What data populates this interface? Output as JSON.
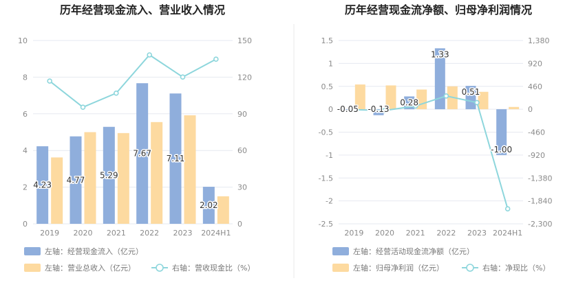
{
  "colors": {
    "bar_a": "#8FAEDC",
    "bar_b": "#FDDAA0",
    "line": "#8DD6DC",
    "grid": "#E6E9F0",
    "axis_text": "#8A8A8A",
    "title": "#222222",
    "label_text": "#333333",
    "legend_text": "#777777",
    "divider": "#EAEAEA"
  },
  "chart_data": [
    {
      "type": "bar",
      "title": "历年经营现金流入、营业收入情况",
      "categories": [
        "2019",
        "2020",
        "2021",
        "2022",
        "2023",
        "2024H1"
      ],
      "left_axis": {
        "ylim": [
          0,
          10
        ],
        "ticks": [
          "0",
          "2",
          "4",
          "6",
          "8",
          "10"
        ]
      },
      "right_axis": {
        "ylim": [
          0,
          150
        ],
        "ticks": [
          "0",
          "30",
          "60",
          "90",
          "120",
          "150"
        ]
      },
      "series": [
        {
          "name": "左轴：经营现金流入（亿元）",
          "kind": "bar",
          "axis": "left",
          "color_key": "bar_a",
          "values": [
            4.23,
            4.77,
            5.29,
            7.67,
            7.11,
            2.02
          ],
          "labels": [
            "4.23",
            "4.77",
            "5.29",
            "7.67",
            "7.11",
            "2.02"
          ]
        },
        {
          "name": "左轴：营业总收入（亿元）",
          "kind": "bar",
          "axis": "left",
          "color_key": "bar_b",
          "values": [
            3.62,
            5.0,
            4.95,
            5.55,
            5.92,
            1.5
          ]
        },
        {
          "name": "右轴：营收现金比（%）",
          "kind": "line",
          "axis": "right",
          "color_key": "line",
          "values": [
            116.8,
            95.4,
            106.9,
            138.2,
            120.1,
            134.7
          ]
        }
      ]
    },
    {
      "type": "bar",
      "title": "历年经营现金流净额、归母净利润情况",
      "categories": [
        "2019",
        "2020",
        "2021",
        "2022",
        "2023",
        "2024H1"
      ],
      "left_axis": {
        "ylim": [
          -2.5,
          1.5
        ],
        "ticks": [
          "-2.5",
          "-2",
          "-1.5",
          "-1",
          "-0.5",
          "0",
          "0.5",
          "1",
          "1.5"
        ]
      },
      "right_axis": {
        "ylim": [
          -2300,
          1380
        ],
        "ticks": [
          "-2,300",
          "-1,840",
          "-1,380",
          "-920",
          "-460",
          "0",
          "460",
          "920",
          "1,380"
        ]
      },
      "series": [
        {
          "name": "左轴：经营活动现金流净额（亿元）",
          "kind": "bar",
          "axis": "left",
          "color_key": "bar_a",
          "values": [
            -0.05,
            -0.13,
            0.28,
            1.33,
            0.51,
            -1.0
          ],
          "labels": [
            "-0.05",
            "-0.13",
            "0.28",
            "1.33",
            "0.51",
            "-1.00"
          ]
        },
        {
          "name": "左轴：归母净利润（亿元）",
          "kind": "bar",
          "axis": "left",
          "color_key": "bar_b",
          "values": [
            0.54,
            0.52,
            0.43,
            0.5,
            0.38,
            0.05
          ]
        },
        {
          "name": "右轴：净现比（%）",
          "kind": "line",
          "axis": "right",
          "color_key": "line",
          "values": [
            -9,
            -25,
            65,
            266,
            134,
            -2000
          ]
        }
      ]
    }
  ]
}
